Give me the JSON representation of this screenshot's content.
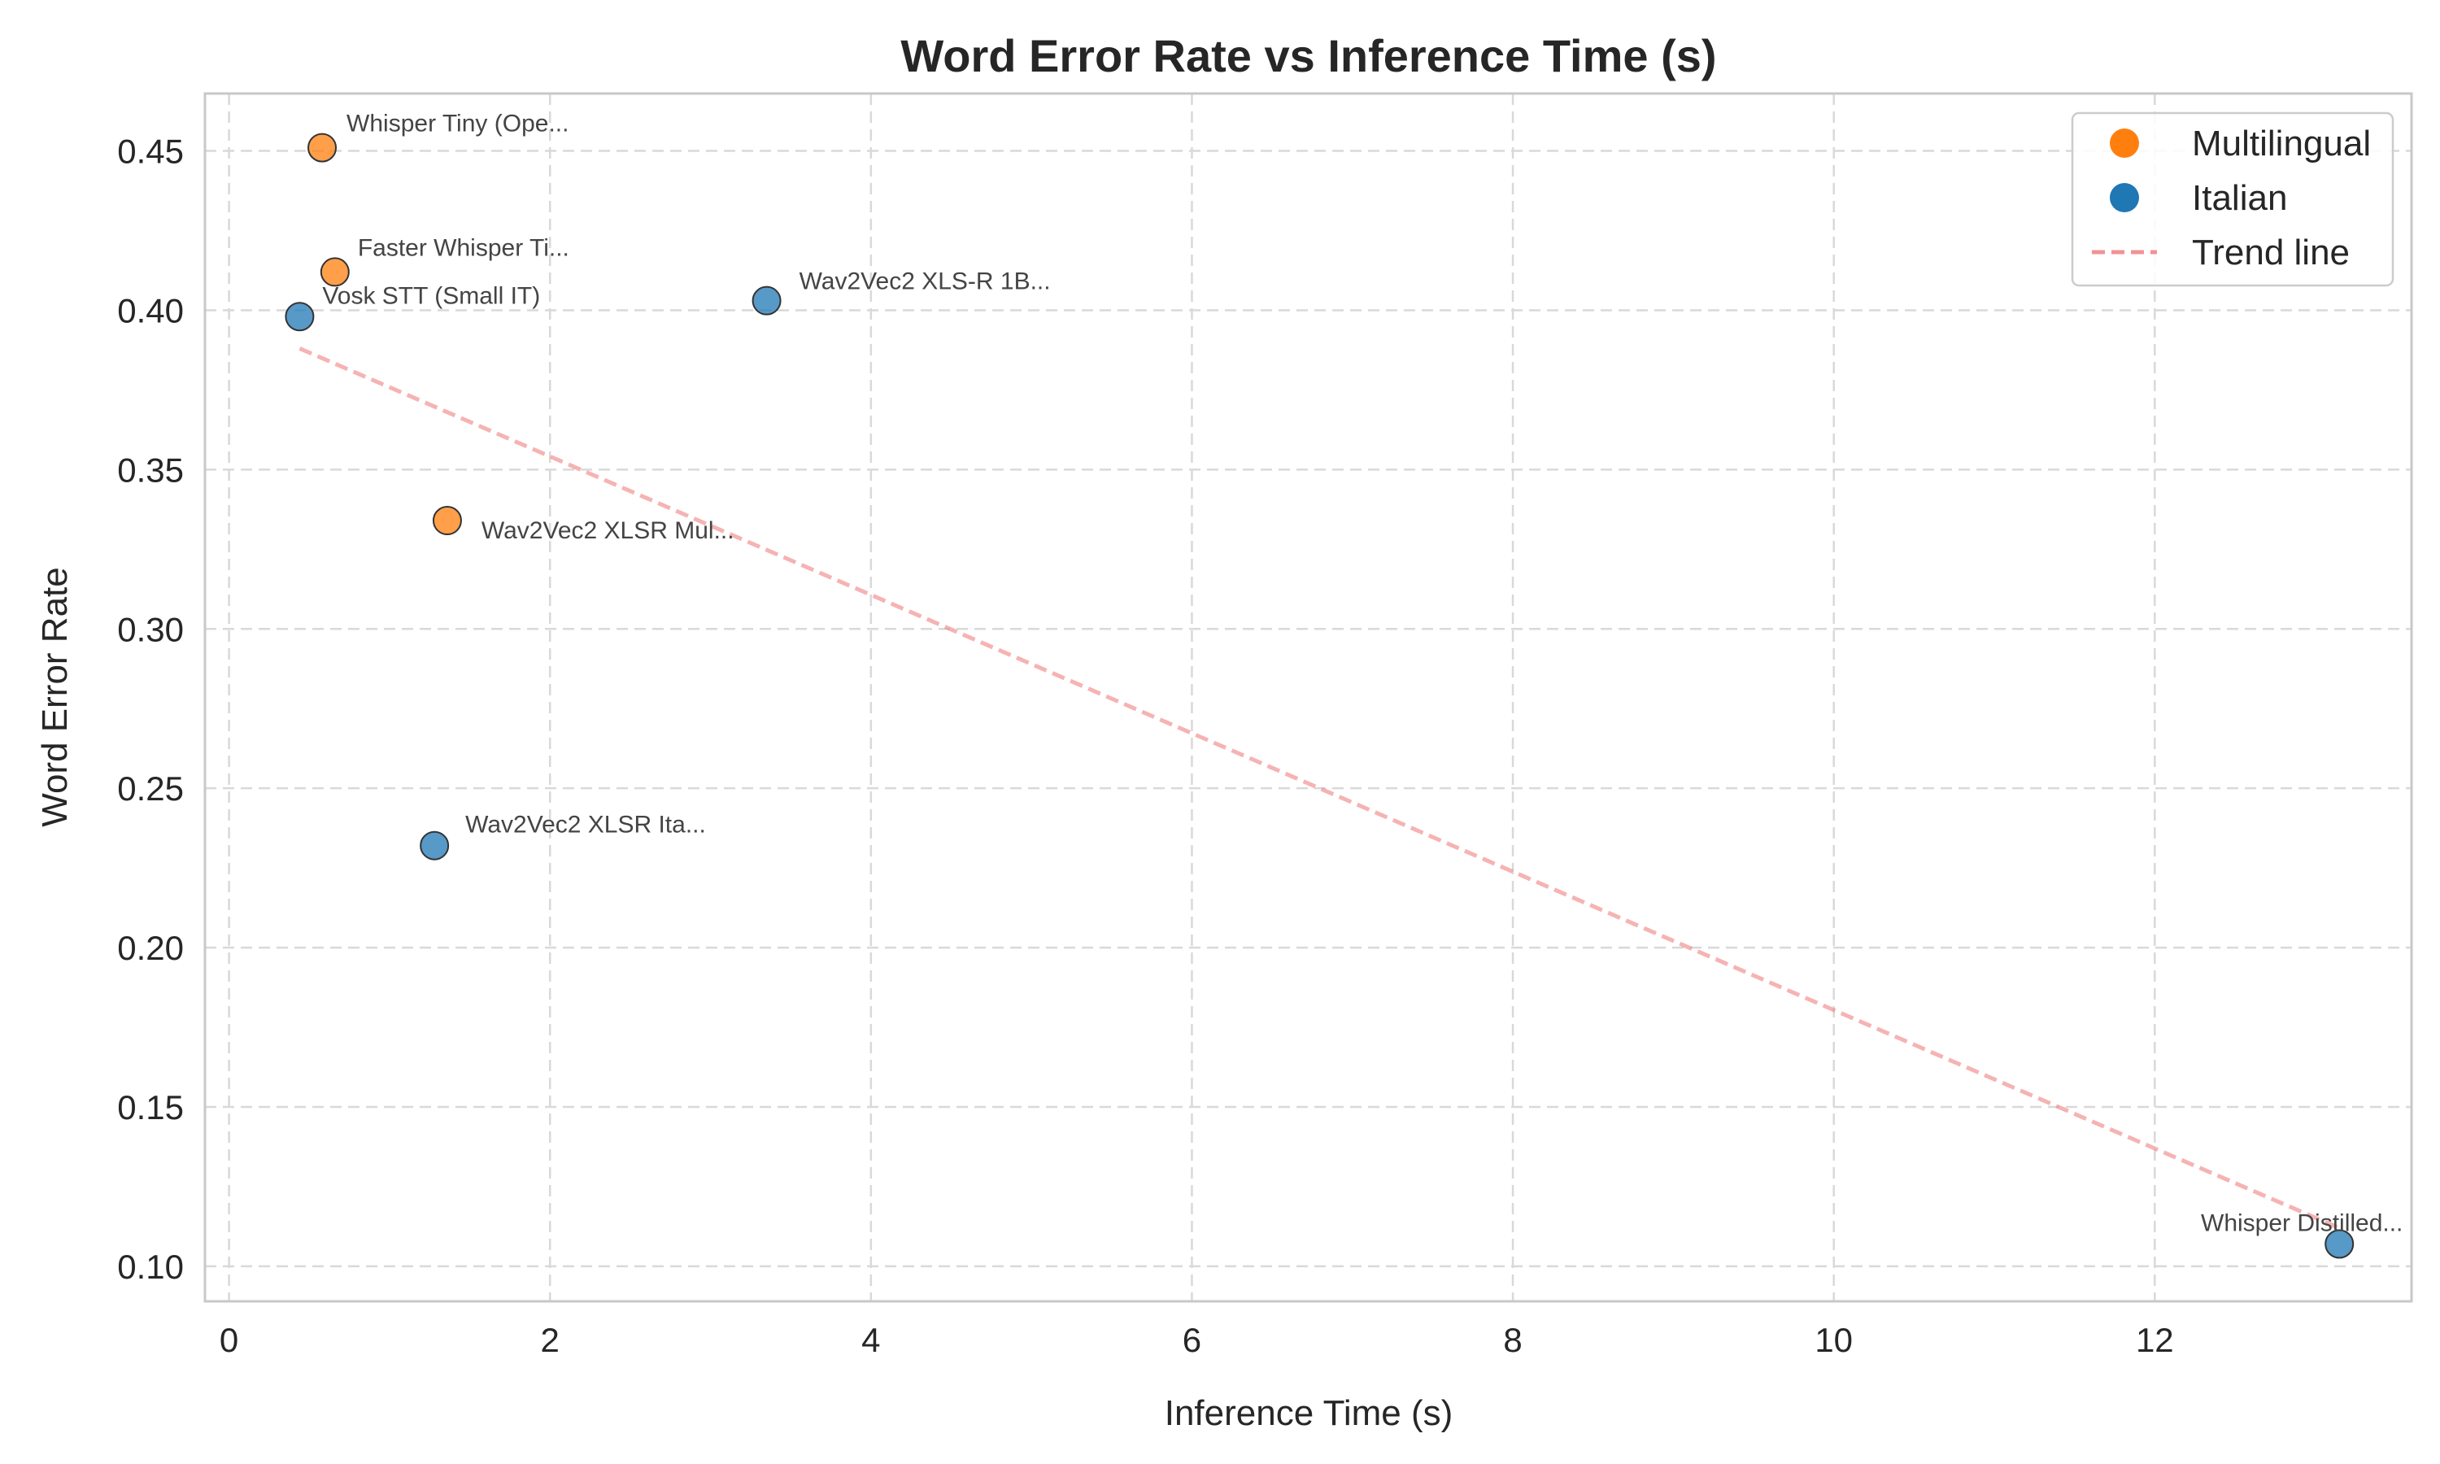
{
  "chart_data": {
    "type": "scatter",
    "title": "Word Error Rate vs Inference Time (s)",
    "xlabel": "Inference Time (s)",
    "ylabel": "Word Error Rate",
    "xlim": [
      -0.15,
      13.6
    ],
    "ylim": [
      0.089,
      0.468
    ],
    "xticks": [
      0,
      2,
      4,
      6,
      8,
      10,
      12
    ],
    "xtick_labels": [
      "0",
      "2",
      "4",
      "6",
      "8",
      "10",
      "12"
    ],
    "yticks": [
      0.1,
      0.15,
      0.2,
      0.25,
      0.3,
      0.35,
      0.4,
      0.45
    ],
    "ytick_labels": [
      "0.10",
      "0.15",
      "0.20",
      "0.25",
      "0.30",
      "0.35",
      "0.40",
      "0.45"
    ],
    "grid": true,
    "legend_position": "top-right",
    "series": [
      {
        "name": "Multilingual",
        "color": "#ff7f0e",
        "points": [
          {
            "x": 0.58,
            "y": 0.451,
            "label": "Whisper Tiny (Ope..."
          },
          {
            "x": 0.66,
            "y": 0.412,
            "label": "Faster Whisper Ti..."
          },
          {
            "x": 1.36,
            "y": 0.334,
            "label": "Wav2Vec2 XLSR Mul..."
          }
        ]
      },
      {
        "name": "Italian",
        "color": "#1f77b4",
        "points": [
          {
            "x": 0.44,
            "y": 0.398,
            "label": "Vosk STT (Small IT)"
          },
          {
            "x": 3.35,
            "y": 0.403,
            "label": "Wav2Vec2 XLS-R 1B..."
          },
          {
            "x": 1.28,
            "y": 0.232,
            "label": "Wav2Vec2 XLSR Ita..."
          },
          {
            "x": 13.15,
            "y": 0.107,
            "label": "Whisper Distilled..."
          }
        ]
      }
    ],
    "trend_line": {
      "name": "Trend line",
      "color": "#f08080",
      "x": [
        0.44,
        13.15
      ],
      "y": [
        0.388,
        0.112
      ]
    }
  }
}
